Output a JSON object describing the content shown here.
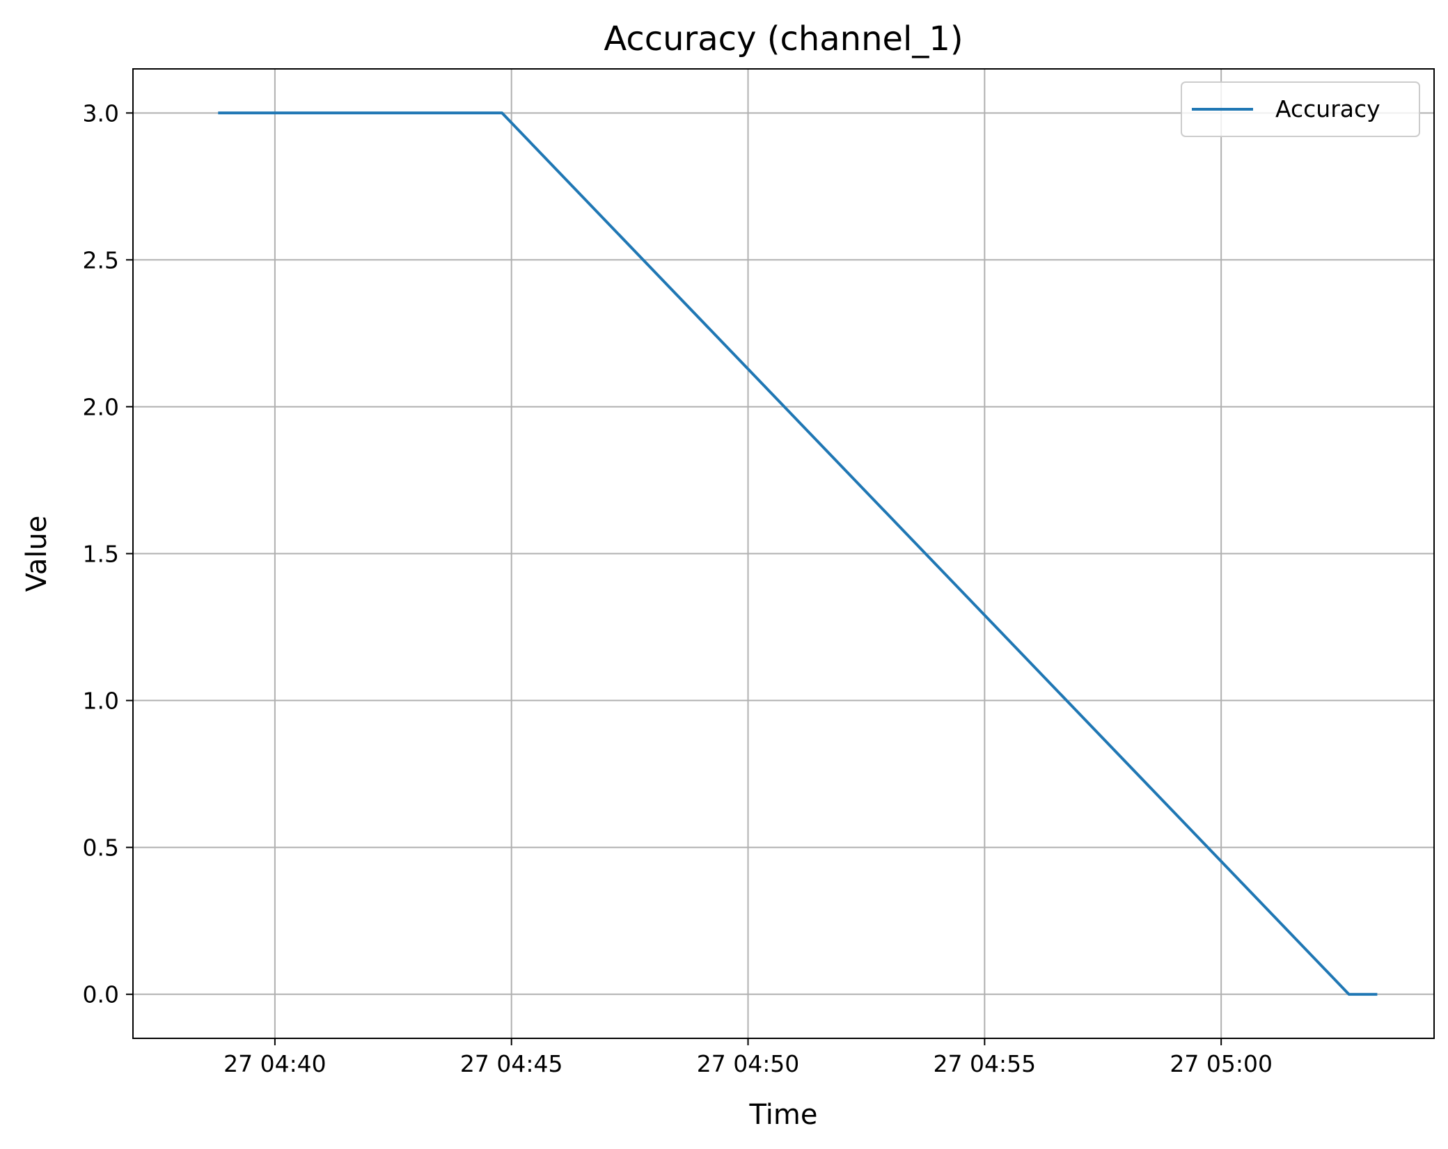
{
  "chart_data": {
    "type": "line",
    "title": "Accuracy (channel_1)",
    "xlabel": "Time",
    "ylabel": "Value",
    "x_ticks": [
      "27 04:40",
      "27 04:45",
      "27 04:50",
      "27 04:55",
      "27 05:00"
    ],
    "y_ticks": [
      "0.0",
      "0.5",
      "1.0",
      "1.5",
      "2.0",
      "2.5",
      "3.0"
    ],
    "xlim": [
      "27 04:37:00",
      "27 05:04:30"
    ],
    "ylim": [
      -0.15,
      3.15
    ],
    "grid": true,
    "legend_position": "top-right",
    "series": [
      {
        "name": "Accuracy",
        "color": "#1f77b4",
        "x": [
          "27 04:38:48",
          "27 04:44:48",
          "27 05:02:42",
          "27 05:03:18"
        ],
        "y": [
          3.0,
          3.0,
          0.0,
          0.0
        ]
      }
    ]
  }
}
